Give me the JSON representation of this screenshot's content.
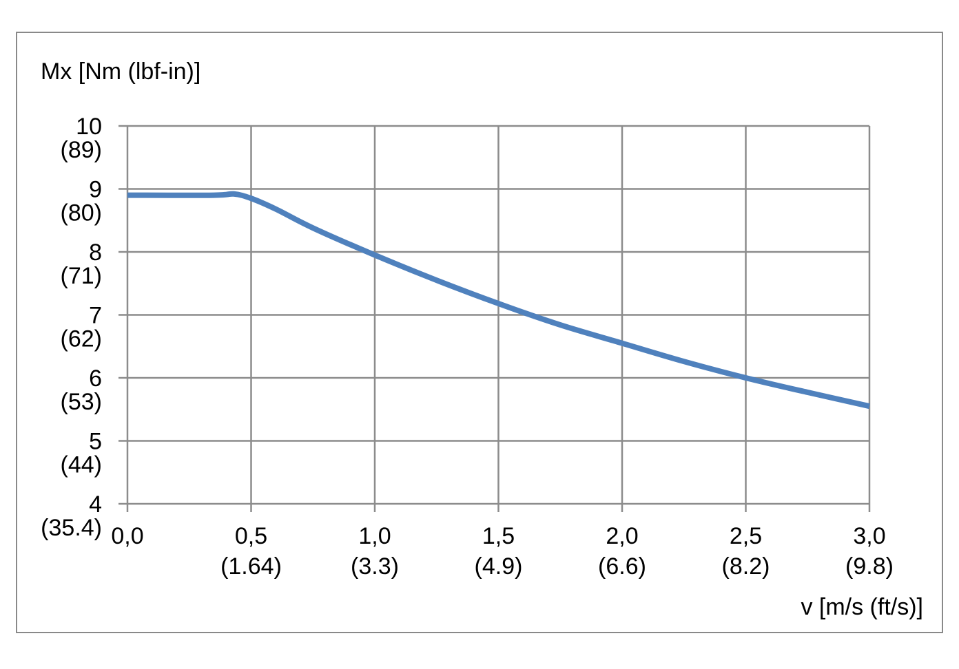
{
  "chart_data": {
    "type": "line",
    "ylabel": "Mx [Nm (lbf-in)]",
    "xlabel": "v [m/s (ft/s)]",
    "xlim": [
      0,
      3
    ],
    "ylim": [
      4,
      10
    ],
    "grid": true,
    "x_ticks": [
      {
        "value": 0.0,
        "label": "0,0",
        "sublabel": ""
      },
      {
        "value": 0.5,
        "label": "0,5",
        "sublabel": "(1.64)"
      },
      {
        "value": 1.0,
        "label": "1,0",
        "sublabel": "(3.3)"
      },
      {
        "value": 1.5,
        "label": "1,5",
        "sublabel": "(4.9)"
      },
      {
        "value": 2.0,
        "label": "2,0",
        "sublabel": "(6.6)"
      },
      {
        "value": 2.5,
        "label": "2,5",
        "sublabel": "(8.2)"
      },
      {
        "value": 3.0,
        "label": "3,0",
        "sublabel": "(9.8)"
      }
    ],
    "y_ticks": [
      {
        "value": 10,
        "label": "10",
        "sublabel": "(89)"
      },
      {
        "value": 9,
        "label": "9",
        "sublabel": "(80)"
      },
      {
        "value": 8,
        "label": "8",
        "sublabel": "(71)"
      },
      {
        "value": 7,
        "label": "7",
        "sublabel": "(62)"
      },
      {
        "value": 6,
        "label": "6",
        "sublabel": "(53)"
      },
      {
        "value": 5,
        "label": "5",
        "sublabel": "(44)"
      },
      {
        "value": 4,
        "label": "4",
        "sublabel": "(35.4)"
      }
    ],
    "series": [
      {
        "color": "#4f81bd",
        "x": [
          0.0,
          0.35,
          0.43,
          0.5,
          0.6,
          0.75,
          1.0,
          1.25,
          1.5,
          1.75,
          2.0,
          2.25,
          2.5,
          2.75,
          3.0
        ],
        "y": [
          8.9,
          8.9,
          8.92,
          8.85,
          8.68,
          8.38,
          7.95,
          7.55,
          7.18,
          6.84,
          6.55,
          6.26,
          6.0,
          5.77,
          5.55
        ]
      }
    ]
  },
  "colors": {
    "grid": "#8c8c8c",
    "frame": "#898989",
    "line": "#4f81bd"
  }
}
